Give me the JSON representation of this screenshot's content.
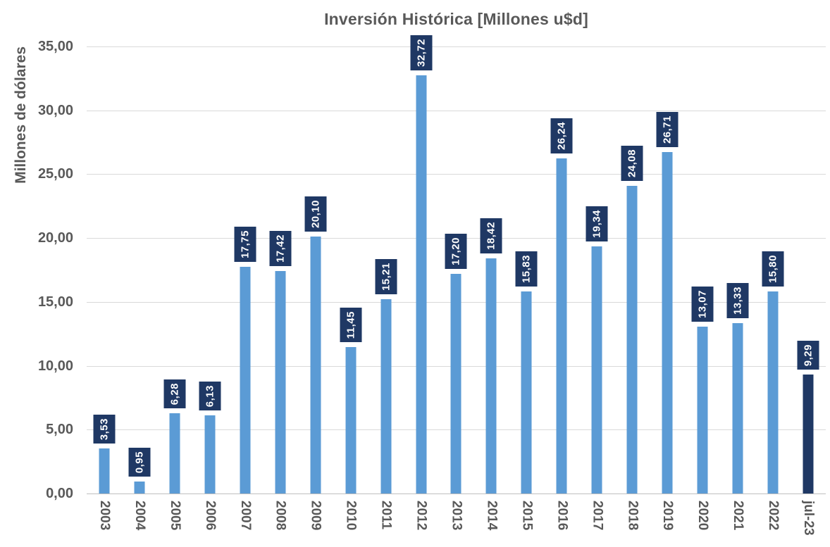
{
  "chart": {
    "title": "Inversión Histórica [Millones u$d]",
    "y_axis_title": "Millones de dólares"
  },
  "chart_data": {
    "type": "bar",
    "title": "Inversión Histórica [Millones u$d]",
    "xlabel": "",
    "ylabel": "Millones de dólares",
    "ylim": [
      0,
      35
    ],
    "grid": true,
    "legend": false,
    "y_ticks": [
      "35,00",
      "30,00",
      "25,00",
      "20,00",
      "15,00",
      "10,00",
      "5,00",
      "0,00"
    ],
    "categories": [
      "2003",
      "2004",
      "2005",
      "2006",
      "2007",
      "2008",
      "2009",
      "2010",
      "2011",
      "2012",
      "2013",
      "2014",
      "2015",
      "2016",
      "2017",
      "2018",
      "2019",
      "2020",
      "2021",
      "2022",
      "jul-23"
    ],
    "values": [
      3.53,
      0.95,
      6.28,
      6.13,
      17.75,
      17.42,
      20.1,
      11.45,
      15.21,
      32.72,
      17.2,
      18.42,
      15.83,
      26.24,
      19.34,
      24.08,
      26.71,
      13.07,
      13.33,
      15.8,
      9.29
    ],
    "value_labels": [
      "3,53",
      "0,95",
      "6,28",
      "6,13",
      "17,75",
      "17,42",
      "20,10",
      "11,45",
      "15,21",
      "32,72",
      "17,20",
      "18,42",
      "15,83",
      "26,24",
      "19,34",
      "24,08",
      "26,71",
      "13,07",
      "13,33",
      "15,80",
      "9,29"
    ],
    "highlight_index": 20,
    "colors": {
      "bar": "#5B9BD5",
      "highlight_bar": "#1F3864",
      "label_bg": "#1F3864",
      "label_text": "#FFFFFF",
      "axis_text": "#595959",
      "gridline": "#D9D9D9",
      "axis_line": "#BFBFBF"
    }
  }
}
